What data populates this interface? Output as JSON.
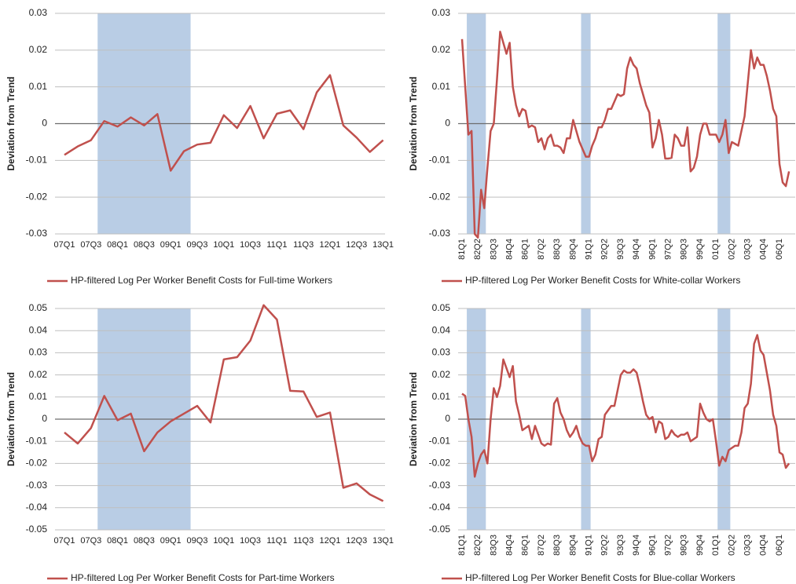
{
  "chart_data": [
    {
      "type": "line",
      "ylabel": "Deviation from Trend",
      "categories": [
        "07Q1",
        null,
        "07Q3",
        null,
        "08Q1",
        null,
        "08Q3",
        null,
        "09Q1",
        null,
        "09Q3",
        null,
        "10Q1",
        null,
        "10Q3",
        null,
        "11Q1",
        null,
        "11Q3",
        null,
        "12Q1",
        null,
        "12Q3",
        null,
        "13Q1"
      ],
      "series": [
        {
          "name": "HP-filtered Log Per Worker Benefit Costs for Full-time Workers",
          "color": "#c0504d",
          "values": [
            -0.0085,
            -0.0062,
            -0.0045,
            0.0007,
            -0.0008,
            0.0017,
            -0.0005,
            0.0026,
            -0.0128,
            -0.0075,
            -0.0057,
            -0.0052,
            0.0023,
            -0.0012,
            0.0048,
            -0.004,
            0.0027,
            0.0036,
            -0.0015,
            0.0085,
            0.0132,
            -0.0005,
            -0.0038,
            -0.0077,
            -0.0045
          ]
        }
      ],
      "ylim": [
        -0.03,
        0.03
      ],
      "yticks": [
        -0.03,
        -0.02,
        -0.01,
        0,
        0.01,
        0.02,
        0.03
      ],
      "grid": true,
      "reference_line": 0,
      "shading": [
        [
          2.5,
          9.5
        ]
      ],
      "shading_color": "#b9cde5",
      "legend": "bottom"
    },
    {
      "type": "line",
      "ylabel": "Deviation from Trend",
      "categories": [
        "81Q1",
        null,
        null,
        null,
        null,
        "82Q2",
        null,
        null,
        null,
        null,
        "83Q3",
        null,
        null,
        null,
        null,
        "84Q4",
        null,
        null,
        null,
        null,
        "86Q1",
        null,
        null,
        null,
        null,
        "87Q2",
        null,
        null,
        null,
        null,
        "88Q3",
        null,
        null,
        null,
        null,
        "89Q4",
        null,
        null,
        null,
        null,
        "91Q1",
        null,
        null,
        null,
        null,
        "92Q2",
        null,
        null,
        null,
        null,
        "93Q3",
        null,
        null,
        null,
        null,
        "94Q4",
        null,
        null,
        null,
        null,
        "96Q1",
        null,
        null,
        null,
        null,
        "97Q2",
        null,
        null,
        null,
        null,
        "98Q3",
        null,
        null,
        null,
        null,
        "99Q4",
        null,
        null,
        null,
        null,
        "01Q1",
        null,
        null,
        null,
        null,
        "02Q2",
        null,
        null,
        null,
        null,
        "03Q3",
        null,
        null,
        null,
        null,
        "04Q4",
        null,
        null,
        null,
        null,
        "06Q1",
        null,
        null,
        null
      ],
      "series": [
        {
          "name": "HP-filtered Log Per Worker Benefit Costs for White-collar Workers",
          "color": "#c0504d",
          "values": [
            0.023,
            0.01,
            -0.003,
            -0.002,
            -0.03,
            -0.031,
            -0.018,
            -0.023,
            -0.012,
            -0.002,
            0,
            0.012,
            0.025,
            0.022,
            0.019,
            0.022,
            0.01,
            0.005,
            0.002,
            0.004,
            0.0035,
            -0.001,
            -0.0005,
            -0.001,
            -0.005,
            -0.004,
            -0.007,
            -0.004,
            -0.003,
            -0.006,
            -0.006,
            -0.0065,
            -0.008,
            -0.004,
            -0.004,
            0.001,
            -0.002,
            -0.005,
            -0.007,
            -0.009,
            -0.009,
            -0.006,
            -0.004,
            -0.001,
            -0.001,
            0.001,
            0.004,
            0.004,
            0.006,
            0.008,
            0.0075,
            0.008,
            0.015,
            0.018,
            0.016,
            0.015,
            0.011,
            0.008,
            0.005,
            0.003,
            -0.0065,
            -0.004,
            0.001,
            -0.003,
            -0.0095,
            -0.0095,
            -0.0093,
            -0.003,
            -0.004,
            -0.006,
            -0.006,
            -0.001,
            -0.013,
            -0.012,
            -0.009,
            -0.003,
            0,
            0,
            -0.003,
            -0.003,
            -0.003,
            -0.005,
            -0.003,
            0.001,
            -0.008,
            -0.005,
            -0.0055,
            -0.006,
            -0.002,
            0.002,
            0.011,
            0.02,
            0.015,
            0.018,
            0.016,
            0.016,
            0.013,
            0.009,
            0.004,
            0.002,
            -0.011,
            -0.016,
            -0.017,
            -0.013
          ]
        }
      ],
      "ylim": [
        -0.03,
        0.03
      ],
      "yticks": [
        -0.03,
        -0.02,
        -0.01,
        0,
        0.01,
        0.02,
        0.03
      ],
      "grid": true,
      "reference_line": 0,
      "shading": [
        [
          1.5,
          7.5
        ],
        [
          37.5,
          40.5
        ],
        [
          80.5,
          84.5
        ]
      ],
      "shading_color": "#b9cde5",
      "legend": "bottom"
    },
    {
      "type": "line",
      "ylabel": "Deviation from Trend",
      "categories": [
        "07Q1",
        null,
        "07Q3",
        null,
        "08Q1",
        null,
        "08Q3",
        null,
        "09Q1",
        null,
        "09Q3",
        null,
        "10Q1",
        null,
        "10Q3",
        null,
        "11Q1",
        null,
        "11Q3",
        null,
        "12Q1",
        null,
        "12Q3",
        null,
        "13Q1"
      ],
      "series": [
        {
          "name": "HP-filtered Log Per Worker Benefit Costs for Part-time Workers",
          "color": "#c0504d",
          "values": [
            -0.006,
            -0.011,
            -0.004,
            0.0105,
            -0.0005,
            0.0025,
            -0.0145,
            -0.006,
            -0.001,
            0.0025,
            0.006,
            -0.0015,
            0.027,
            0.028,
            0.0355,
            0.0515,
            0.045,
            0.0128,
            0.0125,
            0.001,
            0.003,
            -0.031,
            -0.029,
            -0.034,
            -0.037
          ]
        }
      ],
      "ylim": [
        -0.05,
        0.05
      ],
      "yticks": [
        -0.05,
        -0.04,
        -0.03,
        -0.02,
        -0.01,
        0,
        0.01,
        0.02,
        0.03,
        0.04,
        0.05
      ],
      "grid": true,
      "reference_line": 0,
      "shading": [
        [
          2.5,
          9.5
        ]
      ],
      "shading_color": "#b9cde5",
      "legend": "bottom"
    },
    {
      "type": "line",
      "ylabel": "Deviation from Trend",
      "categories": [
        "81Q1",
        null,
        null,
        null,
        null,
        "82Q2",
        null,
        null,
        null,
        null,
        "83Q3",
        null,
        null,
        null,
        null,
        "84Q4",
        null,
        null,
        null,
        null,
        "86Q1",
        null,
        null,
        null,
        null,
        "87Q2",
        null,
        null,
        null,
        null,
        "88Q3",
        null,
        null,
        null,
        null,
        "89Q4",
        null,
        null,
        null,
        null,
        "91Q1",
        null,
        null,
        null,
        null,
        "92Q2",
        null,
        null,
        null,
        null,
        "93Q3",
        null,
        null,
        null,
        null,
        "94Q4",
        null,
        null,
        null,
        null,
        "96Q1",
        null,
        null,
        null,
        null,
        "97Q2",
        null,
        null,
        null,
        null,
        "98Q3",
        null,
        null,
        null,
        null,
        "99Q4",
        null,
        null,
        null,
        null,
        "01Q1",
        null,
        null,
        null,
        null,
        "02Q2",
        null,
        null,
        null,
        null,
        "03Q3",
        null,
        null,
        null,
        null,
        "04Q4",
        null,
        null,
        null,
        null,
        "06Q1",
        null,
        null,
        null
      ],
      "series": [
        {
          "name": "HP-filtered Log Per Worker Benefit Costs for Blue-collar Workers",
          "color": "#c0504d",
          "values": [
            0.0115,
            0.0105,
            0,
            -0.008,
            -0.026,
            -0.02,
            -0.016,
            -0.014,
            -0.02,
            0,
            0.014,
            0.01,
            0.015,
            0.027,
            0.023,
            0.019,
            0.024,
            0.008,
            0.002,
            -0.005,
            -0.004,
            -0.003,
            -0.009,
            -0.003,
            -0.007,
            -0.011,
            -0.012,
            -0.011,
            -0.0115,
            0.007,
            0.0095,
            0.003,
            0,
            -0.005,
            -0.008,
            -0.006,
            -0.003,
            -0.008,
            -0.011,
            -0.012,
            -0.012,
            -0.019,
            -0.016,
            -0.009,
            -0.008,
            0.002,
            0.004,
            0.006,
            0.006,
            0.013,
            0.02,
            0.022,
            0.021,
            0.021,
            0.0225,
            0.021,
            0.015,
            0.008,
            0.002,
            0,
            0.001,
            -0.006,
            -0.001,
            -0.002,
            -0.009,
            -0.008,
            -0.005,
            -0.007,
            -0.008,
            -0.007,
            -0.007,
            -0.006,
            -0.01,
            -0.009,
            -0.008,
            0.007,
            0.003,
            0,
            -0.001,
            0,
            -0.01,
            -0.021,
            -0.017,
            -0.019,
            -0.014,
            -0.013,
            -0.012,
            -0.012,
            -0.006,
            0.005,
            0.007,
            0.016,
            0.034,
            0.038,
            0.031,
            0.029,
            0.021,
            0.013,
            0.002,
            -0.003,
            -0.015,
            -0.016,
            -0.022,
            -0.02
          ]
        }
      ],
      "ylim": [
        -0.05,
        0.05
      ],
      "yticks": [
        -0.05,
        -0.04,
        -0.03,
        -0.02,
        -0.01,
        0,
        0.01,
        0.02,
        0.03,
        0.04,
        0.05
      ],
      "grid": true,
      "reference_line": 0,
      "shading": [
        [
          1.5,
          7.5
        ],
        [
          37.5,
          40.5
        ],
        [
          80.5,
          84.5
        ]
      ],
      "shading_color": "#b9cde5",
      "legend": "bottom"
    }
  ]
}
